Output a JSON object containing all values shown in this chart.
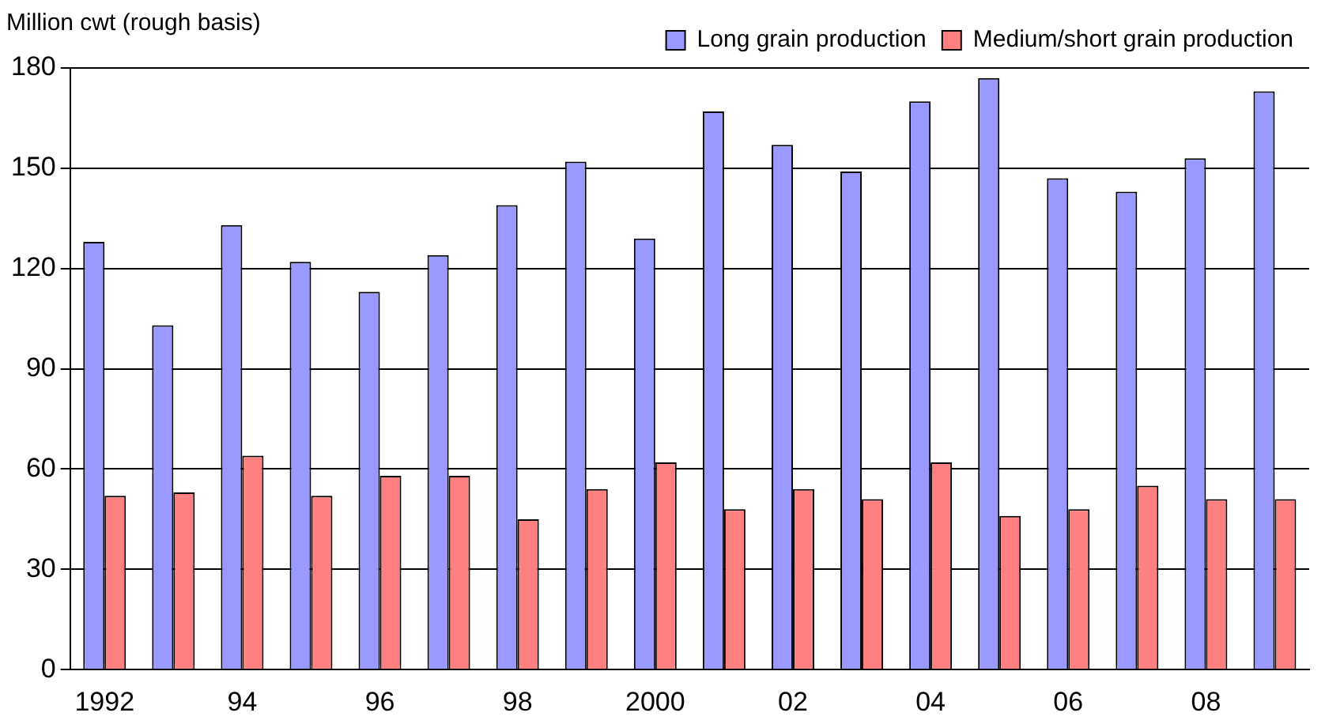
{
  "chart_data": {
    "type": "bar",
    "ylabel": "Million cwt (rough basis)",
    "categories": [
      "1992",
      null,
      "94",
      null,
      "96",
      null,
      "98",
      null,
      "2000",
      null,
      "02",
      null,
      "04",
      null,
      "06",
      null,
      "08",
      null
    ],
    "series": [
      {
        "name": "Long grain production",
        "color": "#9999ff",
        "values": [
          128,
          103,
          133,
          122,
          113,
          124,
          139,
          152,
          129,
          167,
          157,
          149,
          170,
          177,
          147,
          143,
          153,
          173
        ]
      },
      {
        "name": "Medium/short grain production",
        "color": "#ff8080",
        "values": [
          52,
          53,
          64,
          52,
          58,
          58,
          45,
          54,
          62,
          48,
          54,
          51,
          62,
          46,
          48,
          55,
          51,
          51
        ]
      }
    ],
    "ylim": [
      0,
      180
    ],
    "yticks": [
      0,
      30,
      60,
      90,
      120,
      150,
      180
    ],
    "grid": "y",
    "legend": "top right"
  }
}
